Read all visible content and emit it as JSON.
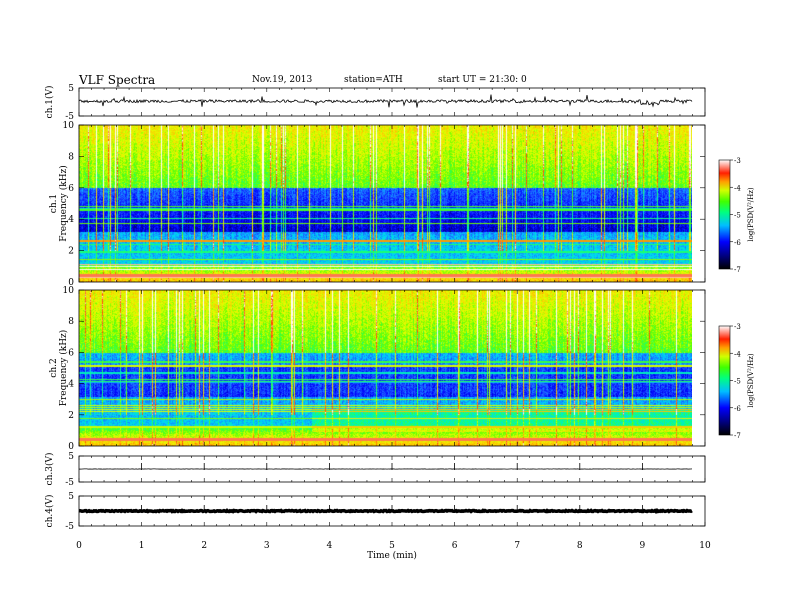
{
  "header": {
    "title": "VLF  Spectra",
    "date": "Nov.19, 2013",
    "station": "station=ATH",
    "start": "start  UT  =   21:30: 0"
  },
  "chart_data": [
    {
      "id": "ch1-waveform",
      "type": "line",
      "ylabel": "ch.1(V)",
      "ylim": [
        -5,
        5
      ],
      "yticks": [
        "5",
        "-5"
      ],
      "description_level": 0.3,
      "series_color": "#000000"
    },
    {
      "id": "ch1-spectrogram",
      "type": "heatmap",
      "ylabel_lines": [
        "ch.1",
        "Frequency  (kHz)"
      ],
      "ylim": [
        0,
        10
      ],
      "yticks": [
        "0",
        "2",
        "4",
        "6",
        "8",
        "10"
      ],
      "xlim": [
        0,
        9.8
      ],
      "colorbar": {
        "label": "log(PSD(V²/Hz)",
        "range": [
          -7,
          -3
        ],
        "ticks": [
          "-3",
          "-4",
          "-5",
          "-6",
          "-7"
        ]
      }
    },
    {
      "id": "ch2-spectrogram",
      "type": "heatmap",
      "ylabel_lines": [
        "ch.2",
        "Frequency  (kHz)"
      ],
      "ylim": [
        0,
        10
      ],
      "yticks": [
        "0",
        "2",
        "4",
        "6",
        "8",
        "10"
      ],
      "xlim": [
        0,
        9.8
      ],
      "colorbar": {
        "label": "log(PSD(V²/Hz)",
        "range": [
          -7,
          -3
        ],
        "ticks": [
          "-3",
          "-4",
          "-5",
          "-6",
          "-7"
        ]
      }
    },
    {
      "id": "ch3-waveform",
      "type": "line",
      "ylabel": "ch.3(V)",
      "ylim": [
        -5,
        5
      ],
      "yticks": [
        "5",
        "-5"
      ],
      "series_color": "#000000"
    },
    {
      "id": "ch4-waveform",
      "type": "line",
      "ylabel": "ch.4(V)",
      "ylim": [
        -5,
        5
      ],
      "yticks": [
        "5",
        "-5"
      ],
      "series_color": "#000000"
    }
  ],
  "xaxis": {
    "label": "Time  (min)",
    "range": [
      0,
      10
    ],
    "ticks": [
      "0",
      "1",
      "2",
      "3",
      "4",
      "5",
      "6",
      "7",
      "8",
      "9",
      "10"
    ]
  },
  "colormap": [
    "#000000",
    "#00007f",
    "#0000ff",
    "#1e5fff",
    "#00cfff",
    "#00ffa0",
    "#5fff00",
    "#e6ff00",
    "#ffbf00",
    "#ff4000",
    "#ffffff"
  ]
}
